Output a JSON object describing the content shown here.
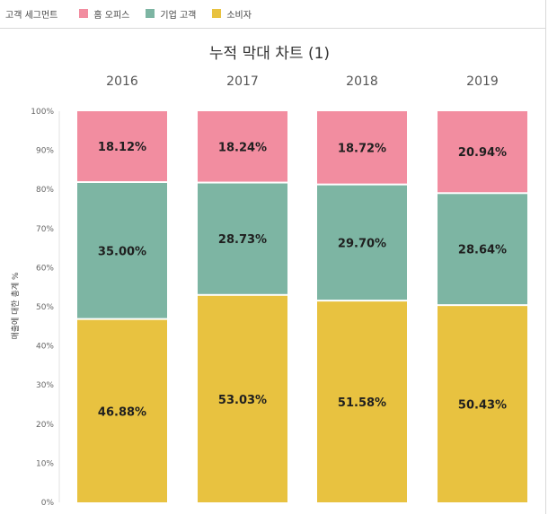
{
  "legend": {
    "title": "고객 세그먼트",
    "items": [
      {
        "label": "홈 오피스",
        "color": "#F28DA0"
      },
      {
        "label": "기업 고객",
        "color": "#7DB5A3"
      },
      {
        "label": "소비자",
        "color": "#E8C240"
      }
    ]
  },
  "chart_data": {
    "type": "bar",
    "stacked": true,
    "title": "누적 막대 차트 (1)",
    "xlabel": "",
    "ylabel": "매출에 대한 총계 %",
    "categories": [
      "2016",
      "2017",
      "2018",
      "2019"
    ],
    "categories_position": "top",
    "ylim": [
      0,
      100
    ],
    "yticks": [
      "0%",
      "10%",
      "20%",
      "30%",
      "40%",
      "50%",
      "60%",
      "70%",
      "80%",
      "90%",
      "100%"
    ],
    "legend_position": "top-left",
    "grid": false,
    "series": [
      {
        "name": "소비자",
        "color": "#E8C240",
        "values": [
          46.88,
          53.03,
          51.58,
          50.43
        ],
        "labels": [
          "46.88%",
          "53.03%",
          "51.58%",
          "50.43%"
        ]
      },
      {
        "name": "기업 고객",
        "color": "#7DB5A3",
        "values": [
          35.0,
          28.73,
          29.7,
          28.64
        ],
        "labels": [
          "35.00%",
          "28.73%",
          "29.70%",
          "28.64%"
        ]
      },
      {
        "name": "홈 오피스",
        "color": "#F28DA0",
        "values": [
          18.12,
          18.24,
          18.72,
          20.94
        ],
        "labels": [
          "18.12%",
          "18.24%",
          "18.72%",
          "20.94%"
        ]
      }
    ]
  }
}
